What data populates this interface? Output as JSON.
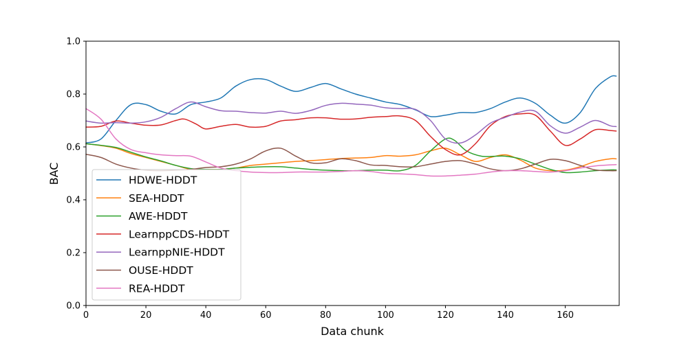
{
  "chart_data": {
    "type": "line",
    "title": "",
    "xlabel": "Data chunk",
    "ylabel": "BAC",
    "xlim": [
      0,
      178
    ],
    "ylim": [
      0.0,
      1.0
    ],
    "xticks": [
      0,
      20,
      40,
      60,
      80,
      100,
      120,
      140,
      160
    ],
    "xtick_labels": [
      "0",
      "20",
      "40",
      "60",
      "80",
      "100",
      "120",
      "140",
      "160"
    ],
    "yticks": [
      0.0,
      0.2,
      0.4,
      0.6,
      0.8,
      1.0
    ],
    "ytick_labels": [
      "0.0",
      "0.2",
      "0.4",
      "0.6",
      "0.8",
      "1.0"
    ],
    "grid": false,
    "legend_position": "lower-left",
    "series": [
      {
        "name": "HDWE-HDDT",
        "color": "#1f77b4",
        "points": [
          [
            0,
            0.615
          ],
          [
            5,
            0.63
          ],
          [
            10,
            0.7
          ],
          [
            15,
            0.76
          ],
          [
            20,
            0.76
          ],
          [
            25,
            0.735
          ],
          [
            30,
            0.725
          ],
          [
            35,
            0.76
          ],
          [
            40,
            0.77
          ],
          [
            45,
            0.785
          ],
          [
            50,
            0.83
          ],
          [
            55,
            0.855
          ],
          [
            60,
            0.855
          ],
          [
            65,
            0.83
          ],
          [
            70,
            0.81
          ],
          [
            75,
            0.825
          ],
          [
            80,
            0.84
          ],
          [
            85,
            0.82
          ],
          [
            90,
            0.8
          ],
          [
            95,
            0.785
          ],
          [
            100,
            0.77
          ],
          [
            105,
            0.76
          ],
          [
            110,
            0.74
          ],
          [
            115,
            0.715
          ],
          [
            120,
            0.72
          ],
          [
            125,
            0.73
          ],
          [
            130,
            0.73
          ],
          [
            135,
            0.745
          ],
          [
            140,
            0.77
          ],
          [
            145,
            0.785
          ],
          [
            150,
            0.765
          ],
          [
            155,
            0.72
          ],
          [
            160,
            0.69
          ],
          [
            165,
            0.73
          ],
          [
            170,
            0.82
          ],
          [
            175,
            0.865
          ],
          [
            177,
            0.868
          ]
        ]
      },
      {
        "name": "SEA-HDDT",
        "color": "#ff7f0e",
        "points": [
          [
            0,
            0.612
          ],
          [
            5,
            0.605
          ],
          [
            10,
            0.595
          ],
          [
            15,
            0.575
          ],
          [
            20,
            0.56
          ],
          [
            25,
            0.545
          ],
          [
            30,
            0.53
          ],
          [
            35,
            0.515
          ],
          [
            40,
            0.515
          ],
          [
            45,
            0.515
          ],
          [
            50,
            0.52
          ],
          [
            55,
            0.53
          ],
          [
            60,
            0.535
          ],
          [
            65,
            0.54
          ],
          [
            70,
            0.545
          ],
          [
            75,
            0.548
          ],
          [
            80,
            0.552
          ],
          [
            85,
            0.556
          ],
          [
            90,
            0.558
          ],
          [
            95,
            0.56
          ],
          [
            100,
            0.567
          ],
          [
            105,
            0.565
          ],
          [
            110,
            0.57
          ],
          [
            115,
            0.585
          ],
          [
            120,
            0.595
          ],
          [
            125,
            0.57
          ],
          [
            130,
            0.545
          ],
          [
            135,
            0.56
          ],
          [
            140,
            0.57
          ],
          [
            145,
            0.55
          ],
          [
            150,
            0.52
          ],
          [
            155,
            0.51
          ],
          [
            160,
            0.512
          ],
          [
            165,
            0.525
          ],
          [
            170,
            0.545
          ],
          [
            175,
            0.555
          ],
          [
            177,
            0.555
          ]
        ]
      },
      {
        "name": "AWE-HDDT",
        "color": "#2ca02c",
        "points": [
          [
            0,
            0.612
          ],
          [
            5,
            0.606
          ],
          [
            10,
            0.598
          ],
          [
            15,
            0.58
          ],
          [
            20,
            0.562
          ],
          [
            25,
            0.547
          ],
          [
            30,
            0.53
          ],
          [
            35,
            0.518
          ],
          [
            40,
            0.515
          ],
          [
            45,
            0.515
          ],
          [
            50,
            0.52
          ],
          [
            55,
            0.523
          ],
          [
            60,
            0.525
          ],
          [
            65,
            0.525
          ],
          [
            70,
            0.52
          ],
          [
            75,
            0.515
          ],
          [
            80,
            0.512
          ],
          [
            85,
            0.51
          ],
          [
            90,
            0.51
          ],
          [
            95,
            0.512
          ],
          [
            100,
            0.512
          ],
          [
            105,
            0.51
          ],
          [
            110,
            0.53
          ],
          [
            115,
            0.585
          ],
          [
            120,
            0.63
          ],
          [
            123,
            0.625
          ],
          [
            127,
            0.585
          ],
          [
            132,
            0.565
          ],
          [
            137,
            0.565
          ],
          [
            140,
            0.565
          ],
          [
            145,
            0.555
          ],
          [
            150,
            0.535
          ],
          [
            155,
            0.515
          ],
          [
            160,
            0.503
          ],
          [
            165,
            0.505
          ],
          [
            170,
            0.51
          ],
          [
            175,
            0.513
          ],
          [
            177,
            0.513
          ]
        ]
      },
      {
        "name": "LearnppCDS-HDDT",
        "color": "#d62728",
        "points": [
          [
            0,
            0.675
          ],
          [
            5,
            0.678
          ],
          [
            10,
            0.698
          ],
          [
            15,
            0.69
          ],
          [
            20,
            0.682
          ],
          [
            25,
            0.683
          ],
          [
            30,
            0.7
          ],
          [
            33,
            0.705
          ],
          [
            37,
            0.685
          ],
          [
            40,
            0.668
          ],
          [
            45,
            0.678
          ],
          [
            50,
            0.685
          ],
          [
            55,
            0.675
          ],
          [
            60,
            0.678
          ],
          [
            65,
            0.698
          ],
          [
            70,
            0.703
          ],
          [
            75,
            0.71
          ],
          [
            80,
            0.71
          ],
          [
            85,
            0.705
          ],
          [
            90,
            0.706
          ],
          [
            95,
            0.712
          ],
          [
            100,
            0.715
          ],
          [
            105,
            0.717
          ],
          [
            110,
            0.7
          ],
          [
            115,
            0.64
          ],
          [
            120,
            0.59
          ],
          [
            125,
            0.57
          ],
          [
            130,
            0.612
          ],
          [
            135,
            0.68
          ],
          [
            140,
            0.715
          ],
          [
            145,
            0.725
          ],
          [
            150,
            0.72
          ],
          [
            155,
            0.66
          ],
          [
            160,
            0.606
          ],
          [
            165,
            0.63
          ],
          [
            170,
            0.665
          ],
          [
            175,
            0.662
          ],
          [
            177,
            0.66
          ]
        ]
      },
      {
        "name": "LearnppNIE-HDDT",
        "color": "#9467bd",
        "points": [
          [
            0,
            0.698
          ],
          [
            5,
            0.69
          ],
          [
            10,
            0.692
          ],
          [
            15,
            0.69
          ],
          [
            20,
            0.695
          ],
          [
            25,
            0.712
          ],
          [
            30,
            0.745
          ],
          [
            35,
            0.77
          ],
          [
            40,
            0.752
          ],
          [
            45,
            0.737
          ],
          [
            50,
            0.735
          ],
          [
            55,
            0.73
          ],
          [
            60,
            0.728
          ],
          [
            65,
            0.735
          ],
          [
            70,
            0.727
          ],
          [
            75,
            0.738
          ],
          [
            80,
            0.757
          ],
          [
            85,
            0.765
          ],
          [
            90,
            0.762
          ],
          [
            95,
            0.758
          ],
          [
            100,
            0.748
          ],
          [
            105,
            0.745
          ],
          [
            110,
            0.742
          ],
          [
            115,
            0.7
          ],
          [
            120,
            0.63
          ],
          [
            125,
            0.615
          ],
          [
            130,
            0.645
          ],
          [
            135,
            0.69
          ],
          [
            140,
            0.712
          ],
          [
            145,
            0.732
          ],
          [
            150,
            0.735
          ],
          [
            155,
            0.68
          ],
          [
            160,
            0.652
          ],
          [
            165,
            0.675
          ],
          [
            170,
            0.7
          ],
          [
            175,
            0.68
          ],
          [
            177,
            0.677
          ]
        ]
      },
      {
        "name": "OUSE-HDDT",
        "color": "#8c564b",
        "points": [
          [
            0,
            0.572
          ],
          [
            5,
            0.56
          ],
          [
            10,
            0.535
          ],
          [
            15,
            0.52
          ],
          [
            20,
            0.512
          ],
          [
            25,
            0.51
          ],
          [
            30,
            0.512
          ],
          [
            35,
            0.515
          ],
          [
            40,
            0.522
          ],
          [
            45,
            0.525
          ],
          [
            50,
            0.535
          ],
          [
            55,
            0.555
          ],
          [
            60,
            0.585
          ],
          [
            65,
            0.595
          ],
          [
            70,
            0.565
          ],
          [
            75,
            0.54
          ],
          [
            80,
            0.54
          ],
          [
            85,
            0.555
          ],
          [
            90,
            0.548
          ],
          [
            95,
            0.532
          ],
          [
            100,
            0.53
          ],
          [
            105,
            0.525
          ],
          [
            110,
            0.525
          ],
          [
            115,
            0.535
          ],
          [
            120,
            0.545
          ],
          [
            125,
            0.548
          ],
          [
            130,
            0.535
          ],
          [
            135,
            0.517
          ],
          [
            140,
            0.51
          ],
          [
            145,
            0.517
          ],
          [
            150,
            0.535
          ],
          [
            155,
            0.553
          ],
          [
            160,
            0.548
          ],
          [
            165,
            0.53
          ],
          [
            170,
            0.513
          ],
          [
            175,
            0.51
          ],
          [
            177,
            0.51
          ]
        ]
      },
      {
        "name": "REA-HDDT",
        "color": "#e377c2",
        "points": [
          [
            0,
            0.745
          ],
          [
            5,
            0.705
          ],
          [
            10,
            0.63
          ],
          [
            15,
            0.59
          ],
          [
            20,
            0.578
          ],
          [
            25,
            0.57
          ],
          [
            30,
            0.567
          ],
          [
            35,
            0.565
          ],
          [
            40,
            0.543
          ],
          [
            45,
            0.52
          ],
          [
            50,
            0.51
          ],
          [
            55,
            0.505
          ],
          [
            60,
            0.503
          ],
          [
            65,
            0.503
          ],
          [
            70,
            0.505
          ],
          [
            75,
            0.505
          ],
          [
            80,
            0.505
          ],
          [
            85,
            0.507
          ],
          [
            90,
            0.51
          ],
          [
            95,
            0.507
          ],
          [
            100,
            0.5
          ],
          [
            105,
            0.498
          ],
          [
            110,
            0.495
          ],
          [
            115,
            0.49
          ],
          [
            120,
            0.49
          ],
          [
            125,
            0.493
          ],
          [
            130,
            0.497
          ],
          [
            135,
            0.505
          ],
          [
            140,
            0.51
          ],
          [
            145,
            0.51
          ],
          [
            150,
            0.507
          ],
          [
            155,
            0.505
          ],
          [
            160,
            0.51
          ],
          [
            165,
            0.52
          ],
          [
            170,
            0.528
          ],
          [
            175,
            0.532
          ],
          [
            177,
            0.533
          ]
        ]
      }
    ]
  }
}
